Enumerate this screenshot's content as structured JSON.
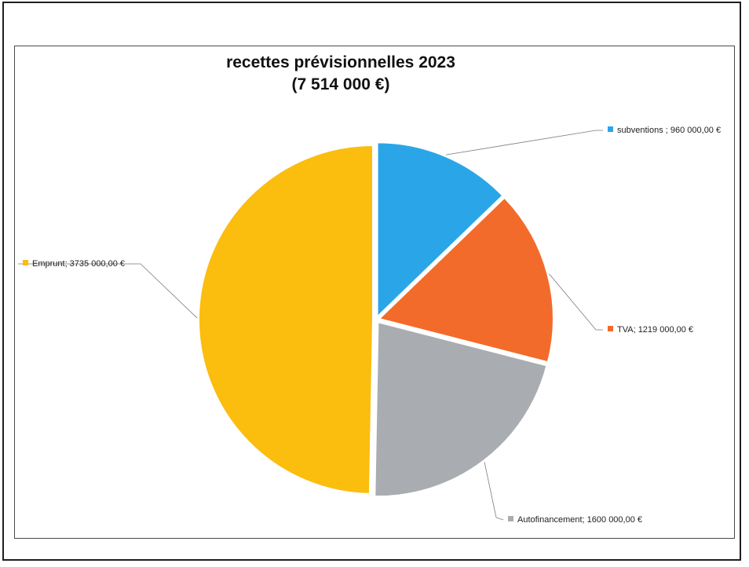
{
  "chart_data": {
    "type": "pie",
    "title": [
      "recettes prévisionnelles 2023",
      "(7 514 000 €)"
    ],
    "total": 7514000,
    "slices": [
      {
        "name": "subventions",
        "value": 960000,
        "label": "subventions ; 960 000,00 €",
        "color": "#2aa6e8"
      },
      {
        "name": "TVA",
        "value": 1219000,
        "label": "TVA; 1219 000,00 €",
        "color": "#f26b2a"
      },
      {
        "name": "Autofinancement",
        "value": 1600000,
        "label": "Autofinancement; 1600 000,00 €",
        "color": "#a9adb2"
      },
      {
        "name": "Emprunt",
        "value": 3735000,
        "label": "Emprunt; 3735 000,00 €",
        "color": "#fbbd0e"
      }
    ],
    "legend": "none",
    "grid": false
  }
}
